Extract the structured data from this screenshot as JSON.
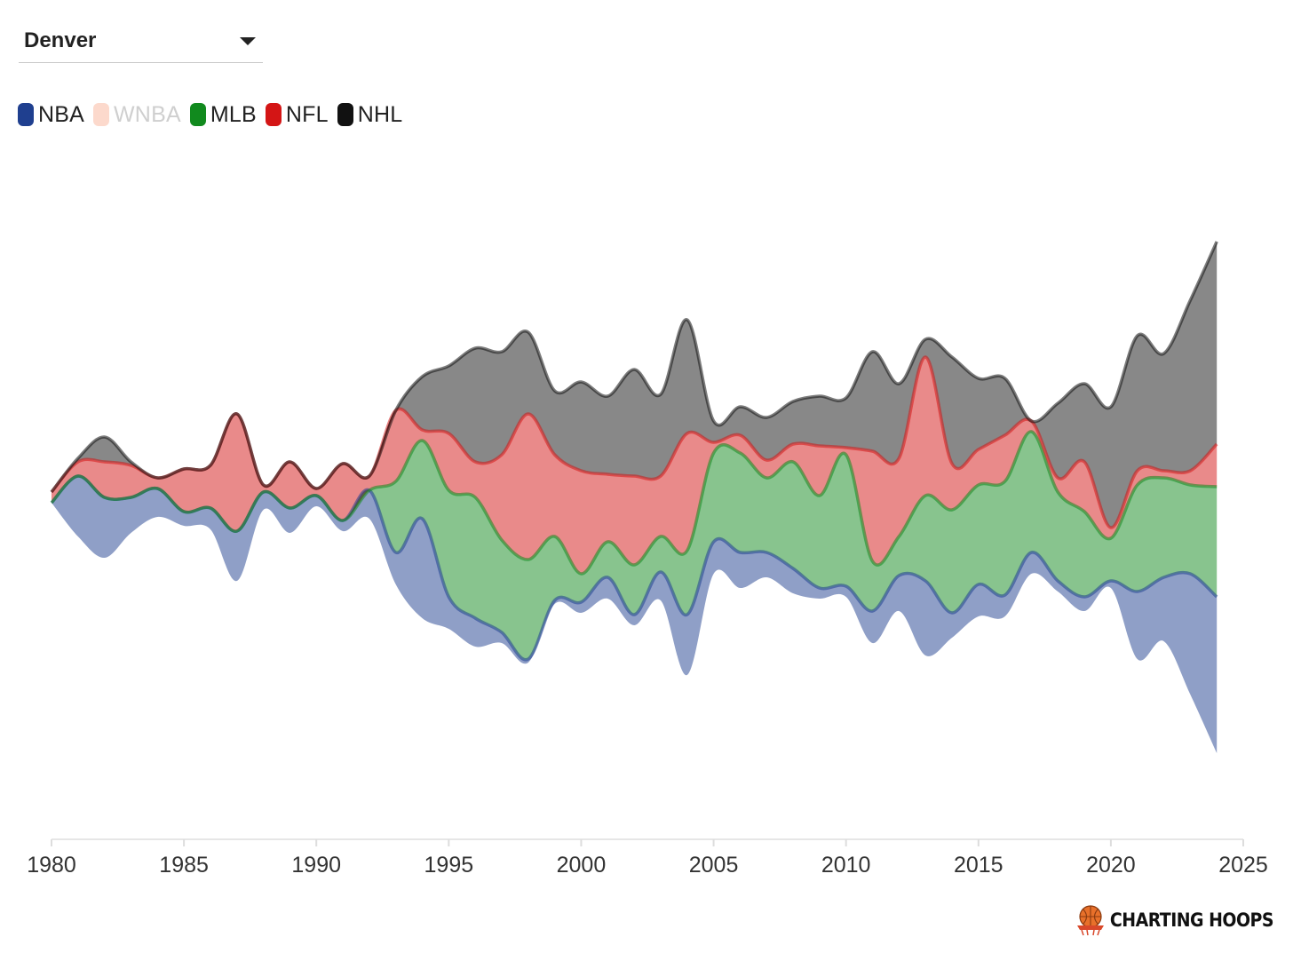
{
  "city_select": {
    "value": "Denver"
  },
  "legend": [
    {
      "label": "NBA",
      "color": "#1f3f8f",
      "active": true
    },
    {
      "label": "WNBA",
      "color": "#fcd9cc",
      "active": false
    },
    {
      "label": "MLB",
      "color": "#118a1e",
      "active": true
    },
    {
      "label": "NFL",
      "color": "#d41515",
      "active": true
    },
    {
      "label": "NHL",
      "color": "#111111",
      "active": true
    }
  ],
  "brand": {
    "text": "CHARTING HOOPS"
  },
  "chart_data": {
    "type": "area",
    "layout": "streamgraph",
    "title": "",
    "xlabel": "",
    "ylabel": "",
    "xlim": [
      1980,
      2025
    ],
    "x_ticks": [
      1980,
      1985,
      1990,
      1995,
      2000,
      2005,
      2010,
      2015,
      2020,
      2025
    ],
    "x_tick_labels": [
      "1980",
      "1985",
      "1990",
      "1995",
      "2000",
      "2005",
      "2010",
      "2015",
      "2020",
      "2025"
    ],
    "grid": false,
    "legend_position": "top-left",
    "x": [
      1980,
      1981,
      1982,
      1983,
      1984,
      1985,
      1986,
      1987,
      1988,
      1989,
      1990,
      1991,
      1992,
      1993,
      1994,
      1995,
      1996,
      1997,
      1998,
      1999,
      2000,
      2001,
      2002,
      2003,
      2004,
      2005,
      2006,
      2007,
      2008,
      2009,
      2010,
      2011,
      2012,
      2013,
      2014,
      2015,
      2016,
      2017,
      2018,
      2019,
      2020,
      2021,
      2022,
      2023,
      2024
    ],
    "series": [
      {
        "name": "NBA",
        "color": "#1f3f8f",
        "values": [
          0,
          17,
          17,
          10,
          8,
          4,
          6,
          14,
          5,
          7,
          3,
          3,
          8,
          9,
          28,
          9,
          8,
          3,
          1,
          1,
          3,
          6,
          3,
          8,
          17,
          9,
          10,
          7,
          7,
          3,
          3,
          9,
          10,
          21,
          7,
          9,
          6,
          6,
          3,
          4,
          2,
          19,
          18,
          34,
          44
        ]
      },
      {
        "name": "MLB",
        "color": "#118a1e",
        "values": [
          0,
          0,
          0,
          0,
          0,
          0,
          0,
          0,
          0,
          0,
          0,
          0,
          0,
          20,
          22,
          30,
          34,
          26,
          28,
          18,
          8,
          10,
          14,
          10,
          18,
          25,
          28,
          21,
          30,
          26,
          37,
          14,
          11,
          24,
          29,
          28,
          32,
          34,
          25,
          24,
          12,
          30,
          28,
          25,
          31
        ]
      },
      {
        "name": "NFL",
        "color": "#d41515",
        "values": [
          3,
          4,
          10,
          9,
          3,
          12,
          12,
          33,
          2,
          13,
          2,
          16,
          4,
          20,
          3,
          16,
          10,
          24,
          41,
          23,
          29,
          19,
          25,
          17,
          33,
          3,
          5,
          5,
          5,
          14,
          2,
          31,
          22,
          39,
          13,
          10,
          13,
          3,
          4,
          14,
          3,
          4,
          2,
          4,
          12
        ]
      },
      {
        "name": "NHL",
        "color": "#111111",
        "values": [
          0,
          1,
          7,
          1,
          0,
          0,
          0,
          0,
          0,
          0,
          0,
          0,
          0,
          0,
          15,
          19,
          32,
          29,
          23,
          18,
          25,
          22,
          30,
          23,
          32,
          6,
          8,
          12,
          12,
          14,
          14,
          28,
          21,
          5,
          30,
          20,
          16,
          0,
          21,
          22,
          34,
          38,
          33,
          48,
          57
        ]
      }
    ]
  }
}
